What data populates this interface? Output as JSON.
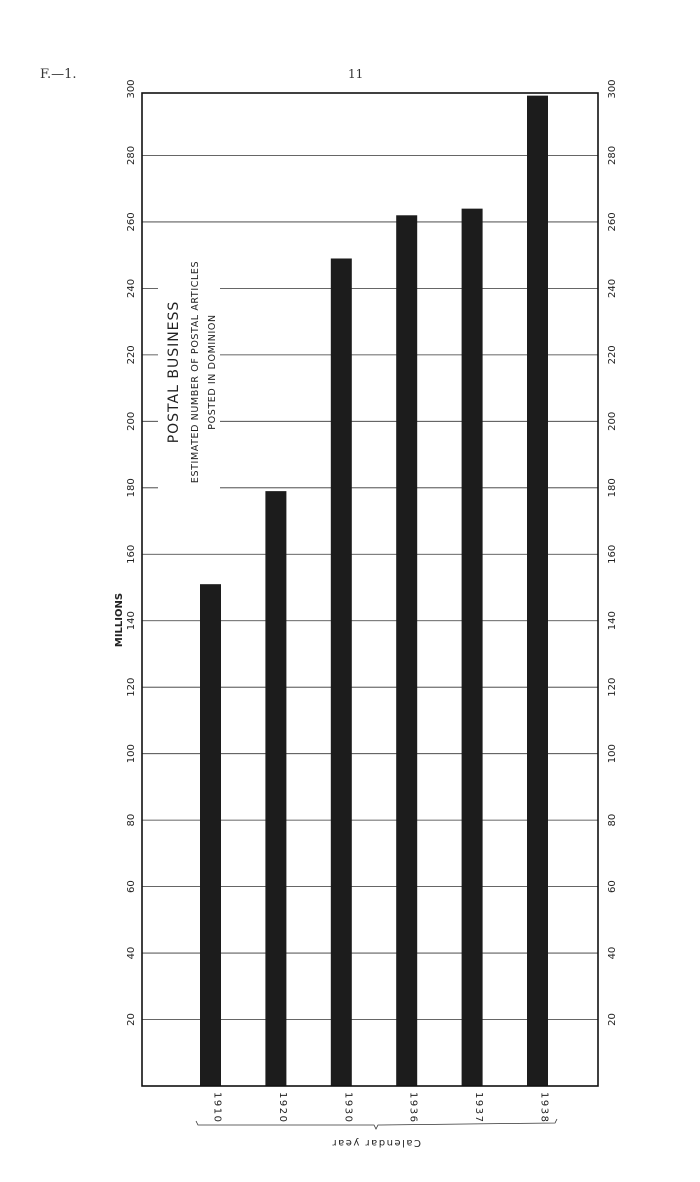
{
  "page": {
    "section": "F.—1.",
    "number": "11"
  },
  "chart_data": {
    "type": "bar",
    "orientation": "vertical",
    "title": "POSTAL BUSINESS",
    "subtitle": [
      "ESTIMATED NUMBER OF POSTAL ARTICLES",
      "POSTED IN DOMINION"
    ],
    "ylabel": "MILLIONS",
    "xlabel": "Calendar year",
    "categories": [
      "1910",
      "1920",
      "1930",
      "1936",
      "1937",
      "1938"
    ],
    "values": [
      151,
      179,
      249,
      262,
      264,
      298
    ],
    "ylim": [
      0,
      300
    ],
    "yticks": [
      20,
      40,
      60,
      80,
      100,
      120,
      140,
      160,
      180,
      200,
      220,
      240,
      260,
      280,
      300
    ],
    "grid": true,
    "y_axis_both_sides": true,
    "bar_color": "#1c1c1c"
  }
}
